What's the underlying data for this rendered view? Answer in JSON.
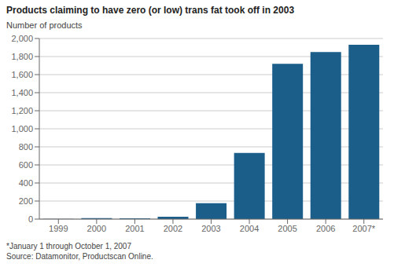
{
  "chart_data": {
    "type": "bar",
    "title": "Products claiming to have zero (or low) trans fat took off in 2003",
    "ylabel": "Number of products",
    "categories": [
      "1999",
      "2000",
      "2001",
      "2002",
      "2003",
      "2004",
      "2005",
      "2006",
      "2007*"
    ],
    "values": [
      2,
      11,
      8,
      27,
      176,
      733,
      1720,
      1849,
      1930
    ],
    "color": "#1B5E8A",
    "ylim": [
      0,
      2000
    ],
    "yticks": [
      0,
      200,
      400,
      600,
      800,
      {
        "value": 1000,
        "label": "1,000"
      },
      {
        "value": 1200,
        "label": "1,200"
      },
      {
        "value": 1400,
        "label": "1,400"
      },
      {
        "value": 1600,
        "label": "1,600"
      },
      {
        "value": 1800,
        "label": "1,800"
      },
      {
        "value": 2000,
        "label": "2,000"
      }
    ],
    "grid": true,
    "annotations": [
      "*January 1 through October 1, 2007",
      "Source: Datamonitor, Productscan Online."
    ]
  }
}
